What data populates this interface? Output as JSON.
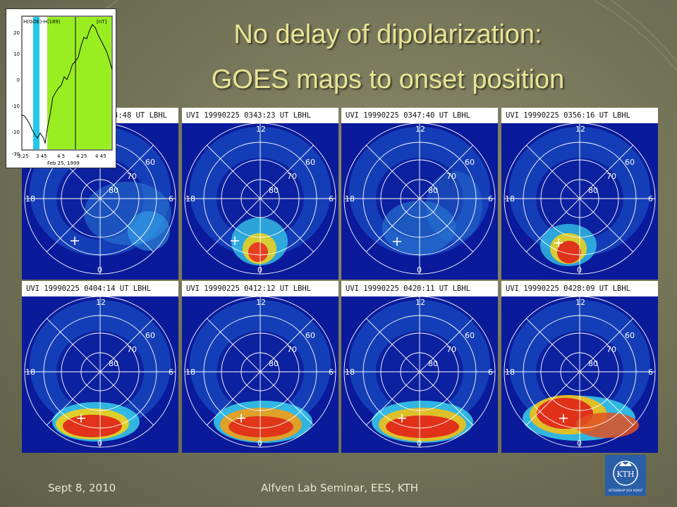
{
  "slide": {
    "title_line1": "No delay of dipolarization:",
    "title_line2": "GOES maps to onset position"
  },
  "inset_plot": {
    "label_left": "H(GOE)-H(189)",
    "label_right": "[nT]",
    "y_ticks": [
      "20",
      "10",
      "0",
      "-10",
      "-20",
      "-30"
    ],
    "x_ticks": [
      "3:25",
      "3 45",
      "4 5",
      "4 25",
      "4 45"
    ],
    "date": "Feb 25, 1999",
    "colors": {
      "cyan": "#22c8e8",
      "green": "#99ee22"
    }
  },
  "panels": [
    {
      "header": "UVI 19990225 0335:48 UT LBHL",
      "visible_header": "4:48 UT LBHL"
    },
    {
      "header": "UVI 19990225 0343:23 UT LBHL"
    },
    {
      "header": "UVI 19990225 0347:40 UT LBHL"
    },
    {
      "header": "UVI 19990225 0356:16 UT LBHL"
    },
    {
      "header": "UVI 19990225 0404:14 UT LBHL"
    },
    {
      "header": "UVI 19990225 0412:12 UT LBHL"
    },
    {
      "header": "UVI 19990225 0420:11 UT LBHL"
    },
    {
      "header": "UVI 19990225 0428:09 UT LBHL"
    }
  ],
  "grid_labels": {
    "noon": "12",
    "dusk": "18",
    "dawn": "6",
    "midnight": "0",
    "lat60": "60",
    "lat70": "70",
    "lat80": "80"
  },
  "footer": {
    "date": "Sept 8, 2010",
    "seminar": "Alfven Lab Seminar, EES, KTH"
  },
  "logo": {
    "text": "KTH",
    "subtitle": "VETENSKAP OCH KONST"
  }
}
